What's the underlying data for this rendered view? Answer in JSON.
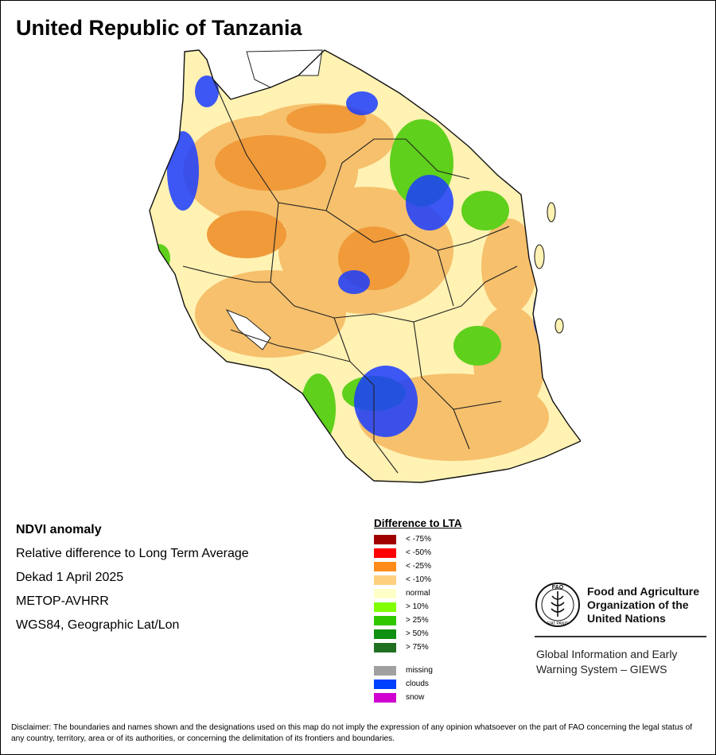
{
  "title": "United Republic of Tanzania",
  "info": {
    "product": "NDVI anomaly",
    "description": "Relative difference to Long Term Average",
    "period": "Dekad 1 April 2025",
    "sensor": "METOP-AVHRR",
    "projection": "WGS84, Geographic Lat/Lon"
  },
  "legend": {
    "title": "Difference to LTA",
    "classes": [
      {
        "label": "< -75%",
        "color": "#a00000"
      },
      {
        "label": "< -50%",
        "color": "#ff0000"
      },
      {
        "label": "< -25%",
        "color": "#ff8c1a"
      },
      {
        "label": "< -10%",
        "color": "#ffd080"
      },
      {
        "label": "normal",
        "color": "#ffffc8"
      },
      {
        "label": "> 10%",
        "color": "#80ff00"
      },
      {
        "label": "> 25%",
        "color": "#30c800"
      },
      {
        "label": "> 50%",
        "color": "#109010"
      },
      {
        "label": "> 75%",
        "color": "#207020"
      }
    ],
    "extra": [
      {
        "label": "missing",
        "color": "#a0a0a0"
      },
      {
        "label": "clouds",
        "color": "#0040ff"
      },
      {
        "label": "snow",
        "color": "#d000d0"
      }
    ]
  },
  "map": {
    "country_fill": "#fff2b3",
    "dry_color": "#f6c06c",
    "strong_dry_color": "#f09a3a",
    "cloud_color": "#1a3cff",
    "green_color": "#5fd01c",
    "lake_color": "#ffffff",
    "border_color": "#222222"
  },
  "fao": {
    "logo_text": "FAO",
    "logo_motto": "FIAT PANIS",
    "name": "Food and Agriculture\nOrganization of the\nUnited Nations",
    "giews": "Global Information and Early\nWarning System – GIEWS"
  },
  "disclaimer": "Disclaimer: The boundaries and names shown and the designations used on this map do not imply the expression of any opinion whatsoever on the part of FAO concerning the legal status of any country, territory, area or of its authorities, or concerning the delimitation of its frontiers and boundaries."
}
